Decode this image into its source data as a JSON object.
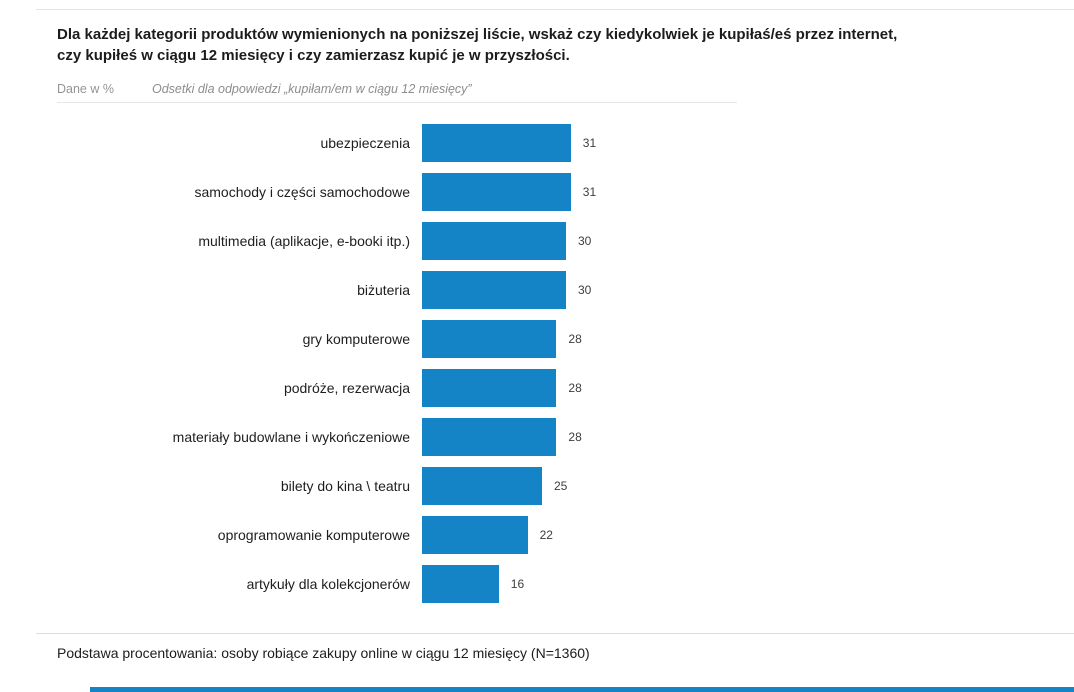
{
  "header": {
    "title_line1": "Dla każdej kategorii produktów wymienionych na poniższej liście, wskaż czy kiedykolwiek je kupiłaś/eś przez internet,",
    "title_line2": "czy kupiłeś w ciągu 12 miesięcy i czy zamierzasz kupić je w przyszłości.",
    "units_label": "Dane w %",
    "subtitle": "Odsetki dla odpowiedzi „kupiłam/em w ciągu 12 miesięcy”"
  },
  "chart_data": {
    "type": "bar",
    "orientation": "horizontal",
    "title": "Dla każdej kategorii produktów wymienionych na poniższej liście, wskaż czy kiedykolwiek je kupiłaś/eś przez internet, czy kupiłeś w ciągu 12 miesięcy i czy zamierzasz kupić je w przyszłości.",
    "subtitle": "Odsetki dla odpowiedzi „kupiłam/em w ciągu 12 miesięcy”",
    "unit": "%",
    "categories": [
      "ubezpieczenia",
      "samochody i części samochodowe",
      "multimedia (aplikacje, e-booki itp.)",
      "biżuteria",
      "gry komputerowe",
      "podróże, rezerwacja",
      "materiały budowlane i wykończeniowe",
      "bilety do kina \\ teatru",
      "oprogramowanie komputerowe",
      "artykuły dla kolekcjonerów"
    ],
    "values": [
      31,
      31,
      30,
      30,
      28,
      28,
      28,
      25,
      22,
      16
    ],
    "xlabel": "",
    "ylabel": "",
    "xlim": [
      0,
      35
    ],
    "grid": false,
    "legend": false,
    "data_labels": true
  },
  "footer": {
    "note": "Podstawa procentowania: osoby robiące zakupy online w ciągu 12 miesięcy (N=1360)"
  },
  "colors": {
    "bar": "#1484c6",
    "bottom_accent": "#1484c6",
    "divider": "#e4e4e4"
  }
}
